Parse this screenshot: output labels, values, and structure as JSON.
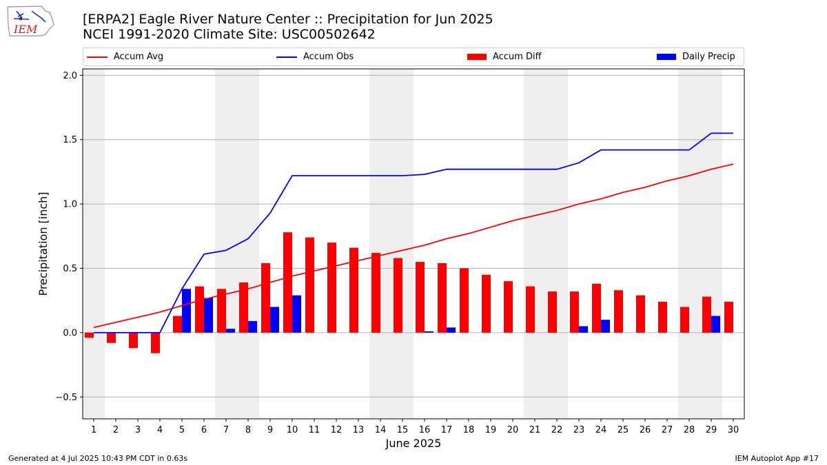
{
  "header": {
    "title_line1": "[ERPA2] Eagle River Nature Center :: Precipitation for Jun 2025",
    "title_line2": "NCEI 1991-2020 Climate Site: USC00502642"
  },
  "logo": {
    "text": "IEM",
    "icon": "iowa-state-map-logo"
  },
  "footer": {
    "generated": "Generated at 4 Jul 2025 10:43 PM CDT in 0.63s",
    "app": "IEM Autoplot App #17"
  },
  "colors": {
    "avg": "#ff0000",
    "obs": "#0000ff",
    "diff": "#ff0000",
    "daily": "#0000ff",
    "weekend": "#eeeeee",
    "grid": "#b0b0b0"
  },
  "chart_data": {
    "type": "bar",
    "title": "[ERPA2] Eagle River Nature Center :: Precipitation for Jun 2025",
    "subtitle": "NCEI 1991-2020 Climate Site: USC00502642",
    "xlabel": "June 2025",
    "ylabel": "Precipitation [inch]",
    "ylim": [
      -0.67,
      2.05
    ],
    "yticks": [
      -0.5,
      0.0,
      0.5,
      1.0,
      1.5,
      2.0
    ],
    "ytick_labels": [
      "−0.5",
      "0.0",
      "0.5",
      "1.0",
      "1.5",
      "2.0"
    ],
    "x": [
      1,
      2,
      3,
      4,
      5,
      6,
      7,
      8,
      9,
      10,
      11,
      12,
      13,
      14,
      15,
      16,
      17,
      18,
      19,
      20,
      21,
      22,
      23,
      24,
      25,
      26,
      27,
      28,
      29,
      30
    ],
    "shaded_days": [
      1,
      7,
      8,
      14,
      15,
      21,
      22,
      28,
      29
    ],
    "grid": true,
    "legend_position": "top",
    "series": [
      {
        "name": "Accum Avg",
        "kind": "line",
        "color": "#ff0000",
        "values": [
          0.04,
          0.08,
          0.12,
          0.16,
          0.21,
          0.26,
          0.3,
          0.34,
          0.39,
          0.44,
          0.48,
          0.52,
          0.56,
          0.6,
          0.64,
          0.68,
          0.73,
          0.77,
          0.82,
          0.87,
          0.91,
          0.95,
          1.0,
          1.04,
          1.09,
          1.13,
          1.18,
          1.22,
          1.27,
          1.31
        ]
      },
      {
        "name": "Accum Obs",
        "kind": "line",
        "color": "#0000ff",
        "values": [
          0.0,
          0.0,
          0.0,
          0.0,
          0.34,
          0.61,
          0.64,
          0.73,
          0.93,
          1.22,
          1.22,
          1.22,
          1.22,
          1.22,
          1.22,
          1.23,
          1.27,
          1.27,
          1.27,
          1.27,
          1.27,
          1.27,
          1.32,
          1.42,
          1.42,
          1.42,
          1.42,
          1.42,
          1.55,
          1.55
        ]
      },
      {
        "name": "Accum Diff",
        "kind": "bar",
        "color": "#ff0000",
        "values": [
          -0.04,
          -0.08,
          -0.12,
          -0.16,
          0.13,
          0.36,
          0.34,
          0.39,
          0.54,
          0.78,
          0.74,
          0.7,
          0.66,
          0.62,
          0.58,
          0.55,
          0.54,
          0.5,
          0.45,
          0.4,
          0.36,
          0.32,
          0.32,
          0.38,
          0.33,
          0.29,
          0.24,
          0.2,
          0.28,
          0.24
        ]
      },
      {
        "name": "Daily Precip",
        "kind": "bar",
        "color": "#0000ff",
        "values": [
          0,
          0,
          0,
          0,
          0.34,
          0.27,
          0.03,
          0.09,
          0.2,
          0.29,
          0,
          0,
          0,
          0,
          0,
          0.01,
          0.04,
          0,
          0,
          0,
          0,
          0,
          0.05,
          0.1,
          0,
          0,
          0,
          0,
          0.13,
          0
        ]
      }
    ]
  }
}
